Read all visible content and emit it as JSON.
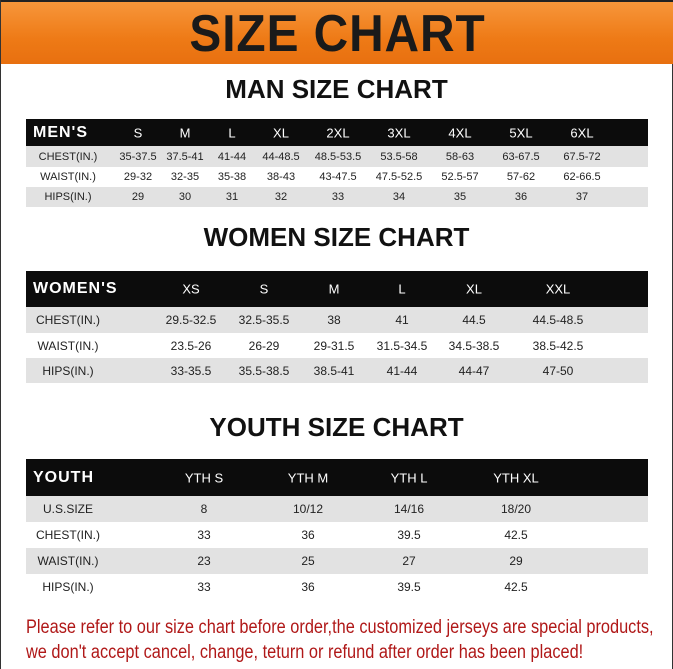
{
  "banner": {
    "title": "SIZE CHART",
    "color": "#ee7a16"
  },
  "tables": [
    {
      "title": "MAN SIZE CHART",
      "header": [
        "MEN'S",
        "S",
        "M",
        "L",
        "XL",
        "2XL",
        "3XL",
        "4XL",
        "5XL",
        "6XL"
      ],
      "rows": [
        [
          "CHEST(IN.)",
          "35-37.5",
          "37.5-41",
          "41-44",
          "44-48.5",
          "48.5-53.5",
          "53.5-58",
          "58-63",
          "63-67.5",
          "67.5-72"
        ],
        [
          "WAIST(IN.)",
          "29-32",
          "32-35",
          "35-38",
          "38-43",
          "43-47.5",
          "47.5-52.5",
          "52.5-57",
          "57-62",
          "62-66.5"
        ],
        [
          "HIPS(IN.)",
          "29",
          "30",
          "31",
          "32",
          "33",
          "34",
          "35",
          "36",
          "37"
        ]
      ]
    },
    {
      "title": "WOMEN SIZE CHART",
      "header": [
        "WOMEN'S",
        "XS",
        "S",
        "M",
        "L",
        "XL",
        "XXL"
      ],
      "rows": [
        [
          "CHEST(IN.)",
          "29.5-32.5",
          "32.5-35.5",
          "38",
          "41",
          "44.5",
          "44.5-48.5"
        ],
        [
          "WAIST(IN.)",
          "23.5-26",
          "26-29",
          "29-31.5",
          "31.5-34.5",
          "34.5-38.5",
          "38.5-42.5"
        ],
        [
          "HIPS(IN.)",
          "33-35.5",
          "35.5-38.5",
          "38.5-41",
          "41-44",
          "44-47",
          "47-50"
        ]
      ]
    },
    {
      "title": "YOUTH SIZE CHART",
      "header": [
        "YOUTH",
        "YTH S",
        "YTH M",
        "YTH L",
        "YTH XL"
      ],
      "rows": [
        [
          "U.S.SIZE",
          "8",
          "10/12",
          "14/16",
          "18/20"
        ],
        [
          "CHEST(IN.)",
          "33",
          "36",
          "39.5",
          "42.5"
        ],
        [
          "WAIST(IN.)",
          "23",
          "25",
          "27",
          "29"
        ],
        [
          "HIPS(IN.)",
          "33",
          "36",
          "39.5",
          "42.5"
        ]
      ]
    }
  ],
  "notice": {
    "line1": "Please refer to our size chart before order,the customized jerseys are special products,",
    "line2": "we don't accept cancel, change, teturn or refund after order has been placed!",
    "color": "#b01818"
  }
}
